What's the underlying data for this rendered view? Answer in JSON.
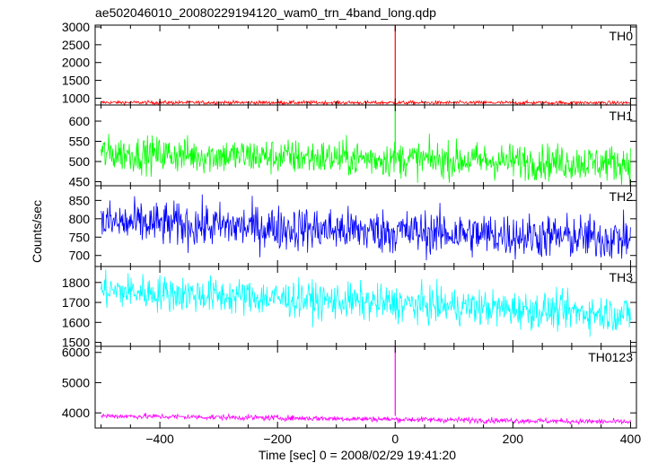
{
  "chart_data": {
    "type": "line",
    "title": "ae502046010_20080229194120_wam0_trn_4band_long.qdp",
    "xlabel": "Time [sec] 0 = 2008/02/29 19:41:20",
    "ylabel": "Counts/sec",
    "xlim": [
      -510,
      410
    ],
    "x_ticks": [
      -400,
      -200,
      0,
      200,
      400
    ],
    "x_tick_labels": [
      "−400",
      "−200",
      "0",
      "200",
      "400"
    ],
    "panels": [
      {
        "name": "TH0",
        "color": "#ff0000",
        "ylim": [
          810,
          3050
        ],
        "y_ticks": [
          1000,
          1500,
          2000,
          2500,
          3000
        ],
        "series": {
          "x_start": -500,
          "x_end": 400,
          "baseline_start": 880,
          "baseline_end": 870,
          "noise": 25,
          "spike": {
            "x": 0,
            "peak": 3050
          }
        }
      },
      {
        "name": "TH1",
        "color": "#00ff00",
        "ylim": [
          440,
          640
        ],
        "y_ticks": [
          450,
          500,
          550,
          600
        ],
        "series": {
          "x_start": -500,
          "x_end": 400,
          "baseline_start": 520,
          "baseline_end": 495,
          "noise": 22,
          "spike": {
            "x": 0,
            "peak": 640
          }
        }
      },
      {
        "name": "TH2",
        "color": "#0000ff",
        "ylim": [
          670,
          890
        ],
        "y_ticks": [
          700,
          750,
          800,
          850
        ],
        "series": {
          "x_start": -500,
          "x_end": 400,
          "baseline_start": 790,
          "baseline_end": 745,
          "noise": 30,
          "spike": null
        }
      },
      {
        "name": "TH3",
        "color": "#00ffff",
        "ylim": [
          1480,
          1880
        ],
        "y_ticks": [
          1500,
          1600,
          1700,
          1800
        ],
        "series": {
          "x_start": -500,
          "x_end": 400,
          "baseline_start": 1760,
          "baseline_end": 1640,
          "noise": 45,
          "spike": null
        }
      },
      {
        "name": "TH0123",
        "color": "#ff00ff",
        "ylim": [
          3500,
          6200
        ],
        "y_ticks": [
          4000,
          5000,
          6000
        ],
        "series": {
          "x_start": -500,
          "x_end": 400,
          "baseline_start": 3900,
          "baseline_end": 3700,
          "noise": 45,
          "spike": {
            "x": 0,
            "peak": 6200
          }
        }
      }
    ],
    "grid": false,
    "legend": "panel labels at top-right"
  }
}
